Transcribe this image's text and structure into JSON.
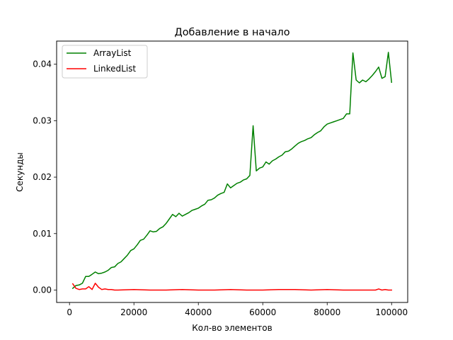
{
  "chart_data": {
    "type": "line",
    "title": "Добавление в начало",
    "xlabel": "Кол-во элементов",
    "ylabel": "Секунды",
    "xlim": [
      -4000,
      105000
    ],
    "ylim": [
      -0.0022,
      0.0441
    ],
    "xticks": [
      0,
      20000,
      40000,
      60000,
      80000,
      100000
    ],
    "xtick_labels": [
      "0",
      "20000",
      "40000",
      "60000",
      "80000",
      "100000"
    ],
    "yticks": [
      0.0,
      0.01,
      0.02,
      0.03,
      0.04
    ],
    "ytick_labels": [
      "0.00",
      "0.01",
      "0.02",
      "0.03",
      "0.04"
    ],
    "grid": false,
    "legend_position": "top-left",
    "series": [
      {
        "name": "ArrayList",
        "color": "#008000",
        "x": [
          1000,
          2000,
          3000,
          4000,
          5000,
          6000,
          7000,
          8000,
          9000,
          10000,
          11000,
          12000,
          13000,
          14000,
          15000,
          16000,
          17000,
          18000,
          19000,
          20000,
          21000,
          22000,
          23000,
          24000,
          25000,
          26000,
          27000,
          28000,
          29000,
          30000,
          31000,
          32000,
          33000,
          34000,
          35000,
          36000,
          37000,
          38000,
          39000,
          40000,
          41000,
          42000,
          43000,
          44000,
          45000,
          46000,
          47000,
          48000,
          49000,
          50000,
          51000,
          52000,
          53000,
          54000,
          55000,
          56000,
          57000,
          58000,
          59000,
          60000,
          61000,
          62000,
          63000,
          64000,
          65000,
          66000,
          67000,
          68000,
          69000,
          70000,
          71000,
          72000,
          73000,
          74000,
          75000,
          76000,
          77000,
          78000,
          79000,
          80000,
          81000,
          82000,
          83000,
          84000,
          85000,
          86000,
          87000,
          88000,
          89000,
          90000,
          91000,
          92000,
          93000,
          94000,
          95000,
          96000,
          97000,
          98000,
          99000,
          100000
        ],
        "y": [
          0.0003,
          0.0008,
          0.0009,
          0.0012,
          0.0024,
          0.0024,
          0.0028,
          0.0032,
          0.0029,
          0.003,
          0.0032,
          0.0035,
          0.004,
          0.0041,
          0.0047,
          0.005,
          0.0056,
          0.0062,
          0.007,
          0.0073,
          0.008,
          0.0088,
          0.009,
          0.0097,
          0.0105,
          0.0103,
          0.0104,
          0.0109,
          0.0112,
          0.0118,
          0.0126,
          0.0134,
          0.013,
          0.0136,
          0.0131,
          0.0134,
          0.0137,
          0.0141,
          0.0143,
          0.0145,
          0.0149,
          0.0152,
          0.0159,
          0.016,
          0.0163,
          0.0168,
          0.0171,
          0.0173,
          0.0188,
          0.0181,
          0.0185,
          0.0189,
          0.0191,
          0.0195,
          0.0197,
          0.0203,
          0.0291,
          0.0211,
          0.0216,
          0.0218,
          0.0227,
          0.0223,
          0.0229,
          0.0232,
          0.0236,
          0.0239,
          0.0245,
          0.0246,
          0.025,
          0.0255,
          0.026,
          0.0263,
          0.0265,
          0.0268,
          0.027,
          0.0275,
          0.0279,
          0.0282,
          0.0289,
          0.0294,
          0.0296,
          0.0298,
          0.03,
          0.0302,
          0.0304,
          0.0312,
          0.0312,
          0.042,
          0.0372,
          0.0367,
          0.0372,
          0.0369,
          0.0374,
          0.038,
          0.0387,
          0.0395,
          0.0375,
          0.0378,
          0.0421,
          0.0368
        ]
      },
      {
        "name": "LinkedList",
        "color": "#ff0000",
        "x": [
          1000,
          2000,
          3000,
          4000,
          5000,
          6000,
          7000,
          8000,
          9000,
          10000,
          11000,
          12000,
          13000,
          14000,
          15000,
          20000,
          25000,
          30000,
          35000,
          40000,
          45000,
          50000,
          55000,
          60000,
          65000,
          70000,
          75000,
          80000,
          85000,
          90000,
          95000,
          96000,
          97000,
          98000,
          99000,
          100000
        ],
        "y": [
          0.0011,
          0.0003,
          0.0001,
          0.0002,
          0.0002,
          0.0006,
          0.0001,
          0.0012,
          0.0005,
          0.0001,
          0.0002,
          0.0001,
          0.0001,
          0.0,
          0.0,
          0.0001,
          0.0,
          0.0,
          0.0001,
          0.0,
          0.0,
          0.0001,
          0.0,
          0.0,
          0.0001,
          0.0001,
          0.0,
          0.0001,
          0.0,
          0.0,
          0.0,
          0.0002,
          0.0,
          0.0001,
          0.0,
          0.0
        ]
      }
    ]
  }
}
